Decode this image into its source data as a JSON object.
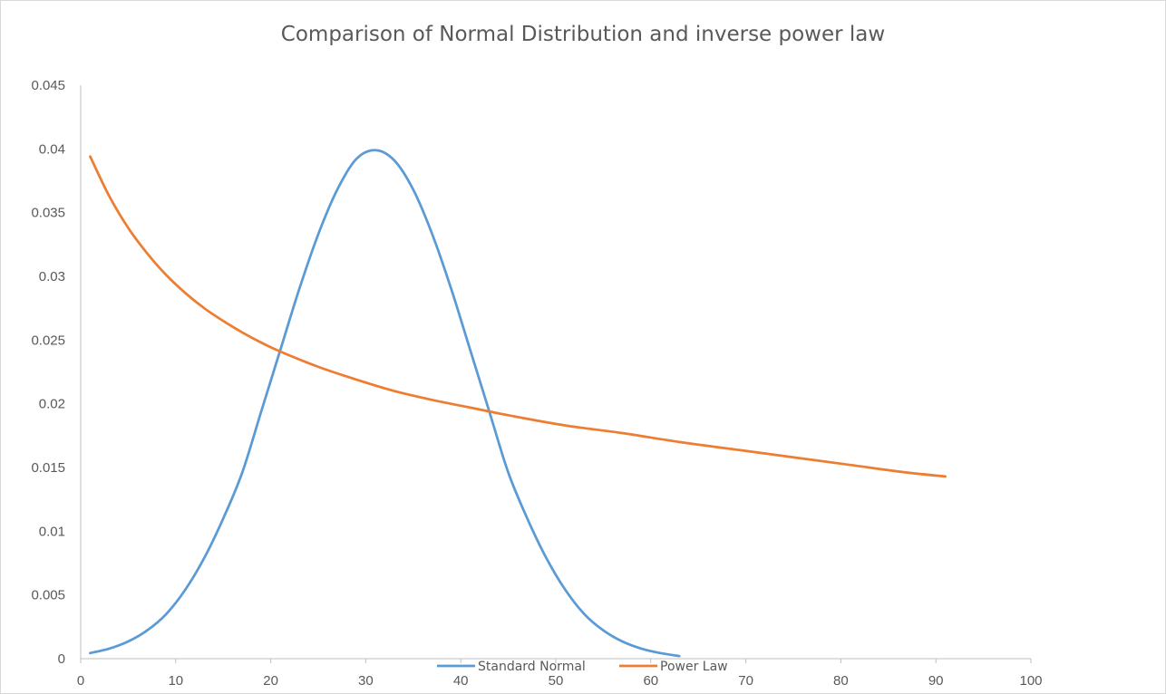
{
  "chart_data": {
    "type": "line",
    "title": "Comparison of Normal Distribution and inverse power law",
    "xlabel": "",
    "ylabel": "",
    "xlim": [
      0,
      100
    ],
    "ylim": [
      0,
      0.045
    ],
    "x_ticks": [
      "0",
      "10",
      "20",
      "30",
      "40",
      "50",
      "60",
      "70",
      "80",
      "90",
      "100"
    ],
    "y_ticks": [
      "0",
      "0.005",
      "0.01",
      "0.015",
      "0.02",
      "0.025",
      "0.03",
      "0.035",
      "0.04",
      "0.045"
    ],
    "grid": false,
    "legend_position": "bottom",
    "series": [
      {
        "name": "Standard Normal",
        "color": "#5b9bd5",
        "x": [
          1,
          3,
          5,
          7,
          9,
          11,
          13,
          15,
          17,
          19,
          21,
          23,
          25,
          27,
          29,
          31,
          33,
          35,
          37,
          39,
          41,
          43,
          45,
          47,
          49,
          51,
          53,
          55,
          57,
          59,
          61,
          63
        ],
        "y": [
          0.00044,
          0.00079,
          0.00135,
          0.00222,
          0.0035,
          0.0054,
          0.0079,
          0.011,
          0.0146,
          0.0194,
          0.0242,
          0.029,
          0.0333,
          0.0368,
          0.0392,
          0.0399,
          0.0391,
          0.0368,
          0.0333,
          0.029,
          0.0242,
          0.0194,
          0.0146,
          0.011,
          0.0079,
          0.0054,
          0.0035,
          0.00222,
          0.00135,
          0.00079,
          0.00044,
          0.0002
        ]
      },
      {
        "name": "Power Law",
        "color": "#ed7d31",
        "x": [
          1,
          3,
          5,
          7,
          9,
          11,
          13,
          15,
          17,
          19,
          21,
          25,
          29,
          33,
          37,
          41,
          45,
          51,
          57,
          63,
          69,
          75,
          81,
          87,
          91
        ],
        "y": [
          0.0394,
          0.0363,
          0.0338,
          0.0318,
          0.0301,
          0.0287,
          0.0275,
          0.0265,
          0.0256,
          0.0248,
          0.0241,
          0.0229,
          0.0219,
          0.021,
          0.0203,
          0.0197,
          0.0191,
          0.0183,
          0.0177,
          0.017,
          0.0164,
          0.0158,
          0.0152,
          0.0146,
          0.0143
        ]
      }
    ]
  }
}
